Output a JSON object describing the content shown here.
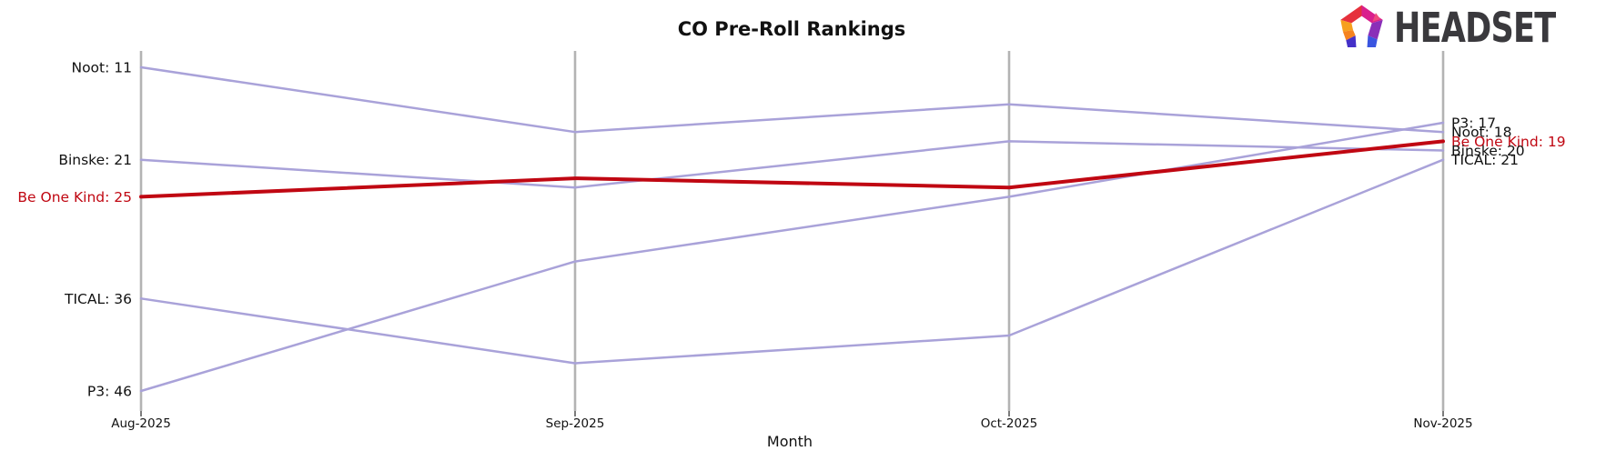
{
  "title": "CO Pre-Roll Rankings",
  "logo": {
    "text": "HEADSET",
    "icon": "headset-pentagon-icon",
    "icon_colors": [
      "#f5831f",
      "#f6a01d",
      "#e6313c",
      "#d9208d",
      "#8a2fb8",
      "#3a55e0",
      "#4430c8"
    ],
    "text_color": "#3a393d"
  },
  "axis": {
    "xlabel": "Month",
    "tick_labels": [
      "Aug-2025",
      "Sep-2025",
      "Oct-2025",
      "Nov-2025"
    ],
    "gridline_color": "#b3b3b3",
    "tick_color": "#444444"
  },
  "chart_data": {
    "type": "line",
    "subtype": "bump-ranking",
    "title": "CO Pre-Roll Rankings",
    "xlabel": "Month",
    "ylabel": "",
    "categories": [
      "Aug-2025",
      "Sep-2025",
      "Oct-2025",
      "Nov-2025"
    ],
    "y_axis": {
      "inverted": true,
      "min_rank": 11,
      "max_rank": 46,
      "axis_hidden": true
    },
    "grid": "vertical-only",
    "legend": "inline-edge-labels",
    "highlight_series": "Be One Kind",
    "highlight_color": "#c00712",
    "line_color_default": "#a9a2d9",
    "series": [
      {
        "name": "Noot",
        "values": [
          11,
          18,
          15,
          18
        ],
        "color": "#a9a2d9",
        "label_color": "#111111",
        "line_width": 2.5,
        "start_label": "Noot: 11",
        "end_label": "Noot: 18"
      },
      {
        "name": "Binske",
        "values": [
          21,
          24,
          19,
          20
        ],
        "color": "#a9a2d9",
        "label_color": "#111111",
        "line_width": 2.5,
        "start_label": "Binske: 21",
        "end_label": "Binske: 20"
      },
      {
        "name": "TICAL",
        "values": [
          36,
          43,
          40,
          21
        ],
        "color": "#a9a2d9",
        "label_color": "#111111",
        "line_width": 2.5,
        "start_label": "TICAL: 36",
        "end_label": "TICAL: 21"
      },
      {
        "name": "P3",
        "values": [
          46,
          32,
          25,
          17
        ],
        "color": "#a9a2d9",
        "label_color": "#111111",
        "line_width": 2.5,
        "start_label": "P3: 46",
        "end_label": "P3: 17"
      },
      {
        "name": "Be One Kind",
        "values": [
          25,
          23,
          24,
          19
        ],
        "color": "#c00712",
        "label_color": "#c00712",
        "line_width": 4,
        "start_label": "Be One Kind: 25",
        "end_label": "Be One Kind: 19"
      }
    ]
  }
}
